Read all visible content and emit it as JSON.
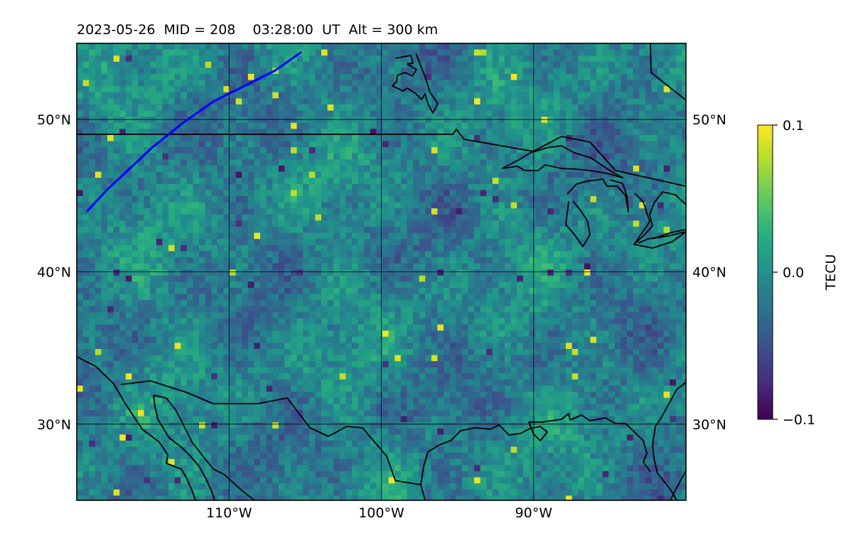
{
  "title": "2023-05-26  MID = 208    03:28:00  UT  Alt = 300 km",
  "map": {
    "lon_range": [
      -120,
      -80
    ],
    "lat_range": [
      25,
      55
    ],
    "gridlines": true,
    "lat_ticks": [
      {
        "value": 30,
        "label": "30°N"
      },
      {
        "value": 40,
        "label": "40°N"
      },
      {
        "value": 50,
        "label": "50°N"
      }
    ],
    "lon_ticks": [
      {
        "value": -110,
        "label": "110°W"
      },
      {
        "value": -100,
        "label": "100°W"
      },
      {
        "value": -90,
        "label": "90°W"
      }
    ],
    "track_color": "#0000ff",
    "track": [
      [
        -119.3,
        44.0
      ],
      [
        -118.0,
        45.4
      ],
      [
        -116.5,
        46.8
      ],
      [
        -115.0,
        48.2
      ],
      [
        -113.0,
        49.8
      ],
      [
        -111.0,
        51.2
      ],
      [
        -109.0,
        52.2
      ],
      [
        -107.0,
        53.2
      ],
      [
        -105.3,
        54.4
      ]
    ],
    "coastline_color": "#000000"
  },
  "colorbar": {
    "label": "TECU",
    "colormap": "viridis",
    "min": -0.1,
    "max": 0.1,
    "ticks": [
      {
        "value": 0.1,
        "label": "0.1"
      },
      {
        "value": 0.0,
        "label": "0.0"
      },
      {
        "value": -0.1,
        "label": "−0.1"
      }
    ]
  }
}
